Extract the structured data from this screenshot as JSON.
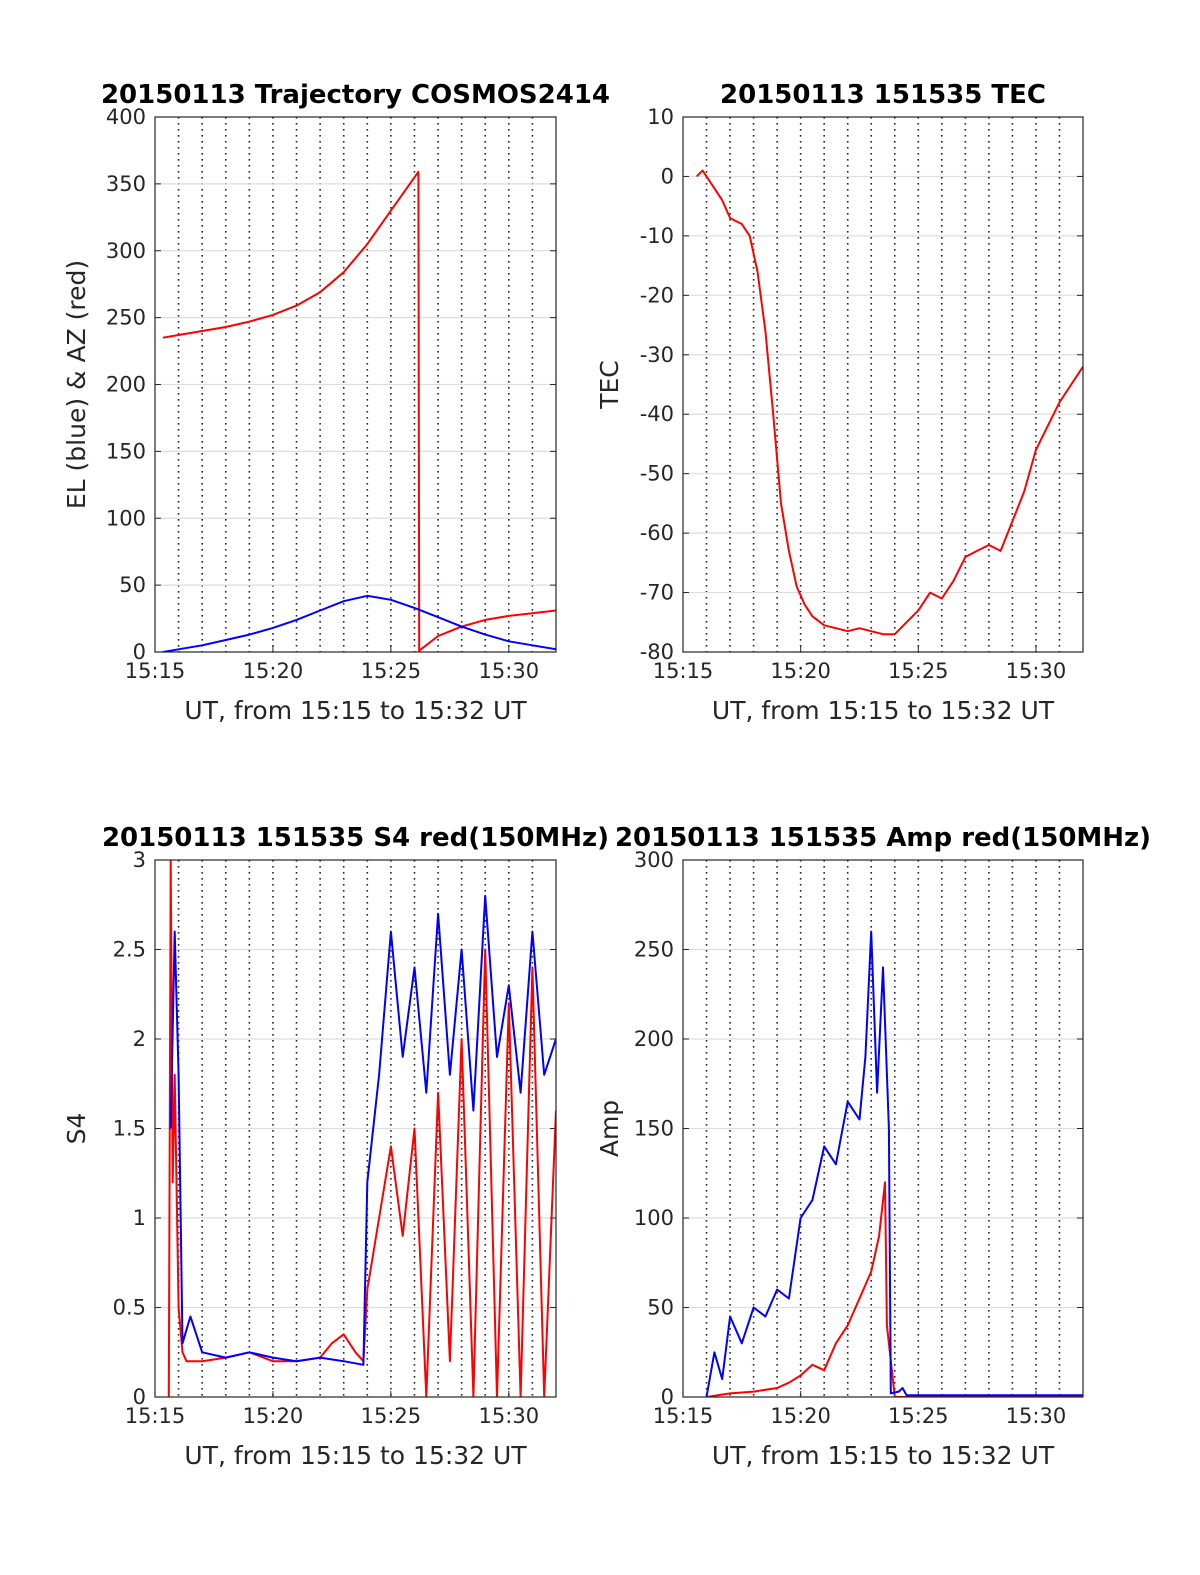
{
  "chart_data": [
    {
      "type": "line",
      "title": "20150113 Trajectory COSMOS2414",
      "xlabel": "UT, from 15:15 to 15:32 UT",
      "ylabel": "EL (blue) & AZ (red)",
      "xlim": [
        "15:15",
        "15:32"
      ],
      "ylim": [
        0,
        400
      ],
      "x_ticks": [
        "15:15",
        "15:20",
        "15:25",
        "15:30"
      ],
      "y_ticks": [
        "0",
        "50",
        "100",
        "150",
        "200",
        "250",
        "300",
        "350",
        "400"
      ],
      "grid": "horizontal solid, vertical dotted every 1 minute",
      "series": [
        {
          "color": "#ff0000",
          "x": [
            "15:15:20",
            "15:16:00",
            "15:17:00",
            "15:18:00",
            "15:19:00",
            "15:20:00",
            "15:21:00",
            "15:22:00",
            "15:23:00",
            "15:24:00",
            "15:25:00",
            "15:26:10",
            "15:26:12",
            "15:27:00",
            "15:28:00",
            "15:29:00",
            "15:30:00",
            "15:31:00",
            "15:32:00"
          ],
          "values": [
            235,
            237,
            240,
            243,
            247,
            252,
            259,
            269,
            284,
            305,
            330,
            359,
            1,
            12,
            19,
            24,
            27,
            29,
            31
          ]
        },
        {
          "color": "#0000ff",
          "x": [
            "15:15:20",
            "15:16:00",
            "15:17:00",
            "15:18:00",
            "15:19:00",
            "15:20:00",
            "15:21:00",
            "15:22:00",
            "15:23:00",
            "15:24:00",
            "15:25:00",
            "15:26:00",
            "15:27:00",
            "15:28:00",
            "15:29:00",
            "15:30:00",
            "15:31:00",
            "15:32:00"
          ],
          "values": [
            0,
            2,
            5,
            9,
            13,
            18,
            24,
            31,
            38,
            42,
            39,
            33,
            26,
            19,
            13,
            8,
            5,
            2
          ]
        }
      ]
    },
    {
      "type": "line",
      "title": "20150113 151535 TEC",
      "xlabel": "UT, from 15:15 to 15:32 UT",
      "ylabel": "TEC",
      "xlim": [
        "15:15",
        "15:32"
      ],
      "ylim": [
        -80,
        10
      ],
      "x_ticks": [
        "15:15",
        "15:20",
        "15:25",
        "15:30"
      ],
      "y_ticks": [
        "-80",
        "-70",
        "-60",
        "-50",
        "-40",
        "-30",
        "-20",
        "-10",
        "0",
        "10"
      ],
      "grid": "horizontal solid, vertical dotted every 1 minute",
      "series": [
        {
          "color": "#ff0000",
          "x": [
            "15:15:35",
            "15:15:50",
            "15:16:10",
            "15:16:40",
            "15:17:00",
            "15:17:30",
            "15:17:50",
            "15:18:10",
            "15:18:30",
            "15:18:50",
            "15:19:10",
            "15:19:30",
            "15:19:50",
            "15:20:10",
            "15:20:30",
            "15:21:00",
            "15:21:30",
            "15:22:00",
            "15:22:30",
            "15:23:00",
            "15:23:30",
            "15:24:00",
            "15:24:30",
            "15:25:00",
            "15:25:30",
            "15:26:00",
            "15:26:30",
            "15:27:00",
            "15:27:30",
            "15:28:00",
            "15:28:30",
            "15:29:00",
            "15:29:30",
            "15:30:00",
            "15:30:30",
            "15:31:00",
            "15:31:30",
            "15:32:00"
          ],
          "values": [
            0,
            1,
            -1,
            -4,
            -7,
            -8,
            -10,
            -16,
            -26,
            -40,
            -55,
            -63,
            -69,
            -72,
            -74,
            -75.5,
            -76,
            -76.5,
            -76,
            -76.5,
            -77,
            -77,
            -75,
            -73,
            -70,
            -71,
            -68,
            -64,
            -63,
            -62,
            -63,
            -58,
            -53,
            -46,
            -42,
            -38,
            -35,
            -32
          ]
        }
      ]
    },
    {
      "type": "line",
      "title": "20150113 151535 S4 red(150MHz)",
      "xlabel": "UT, from 15:15 to 15:32 UT",
      "ylabel": "S4",
      "xlim": [
        "15:15",
        "15:32"
      ],
      "ylim": [
        0,
        3
      ],
      "x_ticks": [
        "15:15",
        "15:20",
        "15:25",
        "15:30"
      ],
      "y_ticks": [
        "0",
        "0.5",
        "1",
        "1.5",
        "2",
        "2.5",
        "3"
      ],
      "grid": "horizontal solid, vertical dotted every 1 minute",
      "series": [
        {
          "color": "#ff0000",
          "x": [
            "15:15:35",
            "15:15:40",
            "15:15:45",
            "15:15:50",
            "15:16:00",
            "15:16:10",
            "15:16:20",
            "15:17:00",
            "15:18:00",
            "15:19:00",
            "15:20:00",
            "15:21:00",
            "15:22:00",
            "15:22:30",
            "15:23:00",
            "15:23:30",
            "15:23:50",
            "15:24:00",
            "15:24:30",
            "15:25:00",
            "15:25:30",
            "15:26:00",
            "15:26:30",
            "15:27:00",
            "15:27:30",
            "15:28:00",
            "15:28:30",
            "15:29:00",
            "15:29:30",
            "15:30:00",
            "15:30:30",
            "15:31:00",
            "15:31:30",
            "15:32:00"
          ],
          "values": [
            0,
            3,
            1.2,
            1.8,
            0.5,
            0.25,
            0.2,
            0.2,
            0.22,
            0.25,
            0.2,
            0.2,
            0.22,
            0.3,
            0.35,
            0.25,
            0.2,
            0.6,
            1.0,
            1.4,
            0.9,
            1.5,
            0,
            1.7,
            0.2,
            2.0,
            0,
            2.5,
            0,
            2.2,
            0,
            2.4,
            0,
            1.6
          ]
        },
        {
          "color": "#0000ff",
          "x": [
            "15:15:40",
            "15:15:50",
            "15:16:00",
            "15:16:10",
            "15:16:30",
            "15:17:00",
            "15:18:00",
            "15:19:00",
            "15:20:00",
            "15:21:00",
            "15:22:00",
            "15:23:00",
            "15:23:50",
            "15:24:00",
            "15:24:30",
            "15:25:00",
            "15:25:30",
            "15:26:00",
            "15:26:30",
            "15:27:00",
            "15:27:30",
            "15:28:00",
            "15:28:30",
            "15:29:00",
            "15:29:30",
            "15:30:00",
            "15:30:30",
            "15:31:00",
            "15:31:30",
            "15:32:00"
          ],
          "values": [
            1.5,
            2.6,
            1.8,
            0.3,
            0.45,
            0.25,
            0.22,
            0.25,
            0.22,
            0.2,
            0.22,
            0.2,
            0.18,
            1.2,
            1.8,
            2.6,
            1.9,
            2.4,
            1.7,
            2.7,
            1.8,
            2.5,
            1.6,
            2.8,
            1.9,
            2.3,
            1.7,
            2.6,
            1.8,
            2.0
          ]
        }
      ]
    },
    {
      "type": "line",
      "title": "20150113 151535 Amp red(150MHz)",
      "xlabel": "UT, from 15:15 to 15:32 UT",
      "ylabel": "Amp",
      "xlim": [
        "15:15",
        "15:32"
      ],
      "ylim": [
        0,
        300
      ],
      "x_ticks": [
        "15:15",
        "15:20",
        "15:25",
        "15:30"
      ],
      "y_ticks": [
        "0",
        "50",
        "100",
        "150",
        "200",
        "250",
        "300"
      ],
      "grid": "horizontal solid, vertical dotted every 1 minute",
      "series": [
        {
          "color": "#ff0000",
          "x": [
            "15:16:00",
            "15:17:00",
            "15:18:00",
            "15:19:00",
            "15:19:30",
            "15:20:00",
            "15:20:30",
            "15:21:00",
            "15:21:30",
            "15:22:00",
            "15:22:30",
            "15:23:00",
            "15:23:20",
            "15:23:35",
            "15:23:40",
            "15:24:00",
            "15:32:00"
          ],
          "values": [
            0,
            2,
            3,
            5,
            8,
            12,
            18,
            15,
            30,
            40,
            55,
            70,
            90,
            120,
            40,
            0,
            0
          ]
        },
        {
          "color": "#0000ff",
          "x": [
            "15:16:00",
            "15:16:20",
            "15:16:40",
            "15:17:00",
            "15:17:30",
            "15:18:00",
            "15:18:30",
            "15:19:00",
            "15:19:30",
            "15:20:00",
            "15:20:30",
            "15:21:00",
            "15:21:30",
            "15:22:00",
            "15:22:30",
            "15:22:45",
            "15:23:00",
            "15:23:15",
            "15:23:30",
            "15:23:45",
            "15:23:50",
            "15:24:10",
            "15:24:20",
            "15:24:30",
            "15:32:00"
          ],
          "values": [
            0,
            25,
            10,
            45,
            30,
            50,
            45,
            60,
            55,
            100,
            110,
            140,
            130,
            165,
            155,
            190,
            260,
            170,
            240,
            150,
            2,
            3,
            5,
            1,
            1
          ]
        }
      ]
    }
  ]
}
